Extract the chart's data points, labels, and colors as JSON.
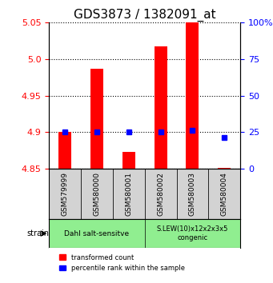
{
  "title": "GDS3873 / 1382091_at",
  "samples": [
    "GSM579999",
    "GSM580000",
    "GSM580001",
    "GSM580002",
    "GSM580003",
    "GSM580004"
  ],
  "red_values": [
    4.9,
    4.987,
    4.873,
    5.018,
    5.05,
    4.851
  ],
  "blue_values": [
    4.9,
    4.9,
    4.9,
    4.9,
    4.903,
    4.893
  ],
  "red_base": 4.85,
  "ylim_min": 4.85,
  "ylim_max": 5.05,
  "yticks_left": [
    4.85,
    4.9,
    4.95,
    5.0,
    5.05
  ],
  "yticks_right": [
    0,
    25,
    50,
    75,
    100
  ],
  "yticks_right_pos": [
    4.85,
    4.9,
    4.95,
    5.0,
    5.05
  ],
  "group1_samples": [
    0,
    1,
    2
  ],
  "group2_samples": [
    3,
    4,
    5
  ],
  "group1_label": "Dahl salt-sensitve",
  "group2_label": "S.LEW(10)x12x2x3x5\ncongenic",
  "group_color": "#90EE90",
  "bar_color": "red",
  "dot_color": "blue",
  "xlabel_strain": "strain",
  "legend_red": "transformed count",
  "legend_blue": "percentile rank within the sample",
  "title_fontsize": 11,
  "tick_fontsize": 8,
  "label_fontsize": 8
}
